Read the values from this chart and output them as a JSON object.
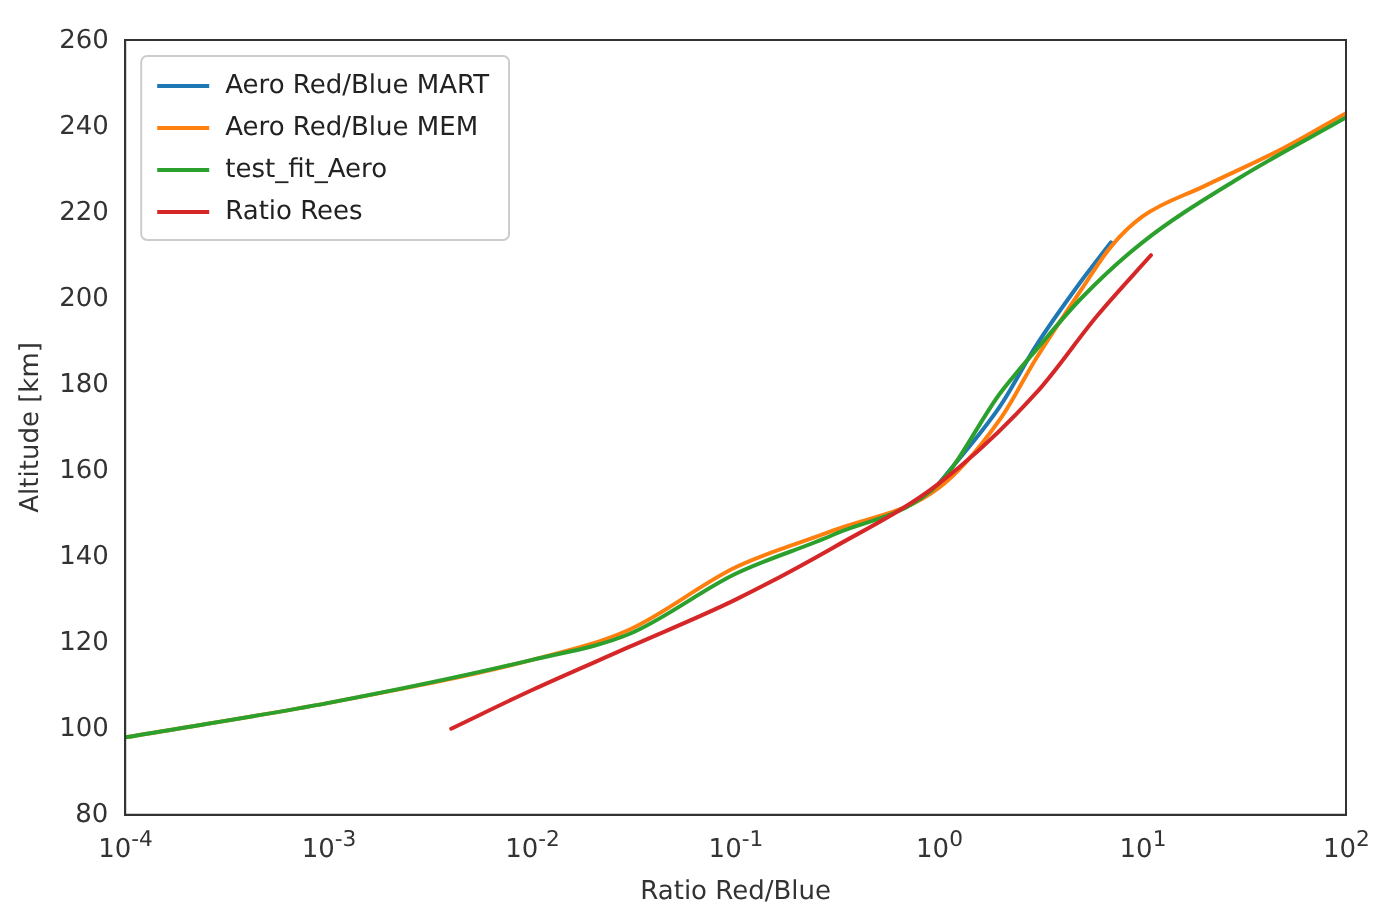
{
  "chart_data": {
    "type": "line",
    "xlabel": "Ratio Red/Blue",
    "ylabel": "Altitude [km]",
    "log": "x",
    "grid": false,
    "legend": "top left",
    "marker": "none",
    "line_style": "solid",
    "xlim": [
      0.0001,
      100
    ],
    "ylim": [
      80,
      260
    ],
    "xticks": [
      {
        "value": 0.0001,
        "label": "10$^{-4}$"
      },
      {
        "value": 0.001,
        "label": "10$^{-3}$"
      },
      {
        "value": 0.01,
        "label": "10$^{-2}$"
      },
      {
        "value": 0.1,
        "label": "10$^{-1}$"
      },
      {
        "value": 1,
        "label": "10$^{0}$"
      },
      {
        "value": 10,
        "label": "10$^{1}$"
      },
      {
        "value": 100,
        "label": "10$^{2}$"
      }
    ],
    "yticks": [
      80,
      100,
      120,
      140,
      160,
      180,
      200,
      220,
      240,
      260
    ],
    "series": [
      {
        "name": "Aero Red/Blue MART",
        "color": "#1f77b4",
        "x": [
          1,
          2,
          3,
          5,
          7
        ],
        "values": [
          157,
          175,
          189,
          204,
          213
        ]
      },
      {
        "name": "Aero Red/Blue MEM",
        "color": "#ff7f0e",
        "x": [
          0.0001,
          0.001,
          0.01,
          0.03,
          0.1,
          0.3,
          1,
          2,
          3,
          5,
          7,
          10,
          20,
          50,
          100
        ],
        "values": [
          98,
          106,
          116,
          123,
          137.5,
          146,
          156,
          172,
          186,
          202,
          212,
          219,
          226,
          235,
          243
        ]
      },
      {
        "name": "test_fit_Aero",
        "color": "#2ca02c",
        "x": [
          0.0001,
          0.001,
          0.01,
          0.03,
          0.1,
          0.3,
          1,
          2,
          3,
          5,
          10,
          30,
          100
        ],
        "values": [
          98,
          106,
          116,
          122,
          136,
          145,
          157,
          178,
          188,
          200,
          213,
          228,
          242
        ]
      },
      {
        "name": "Ratio Rees",
        "color": "#d62728",
        "x": [
          0.004,
          0.01,
          0.03,
          0.1,
          0.3,
          1,
          3,
          6,
          11
        ],
        "values": [
          100,
          109,
          119,
          130,
          142,
          157,
          178,
          196,
          210
        ]
      }
    ]
  }
}
